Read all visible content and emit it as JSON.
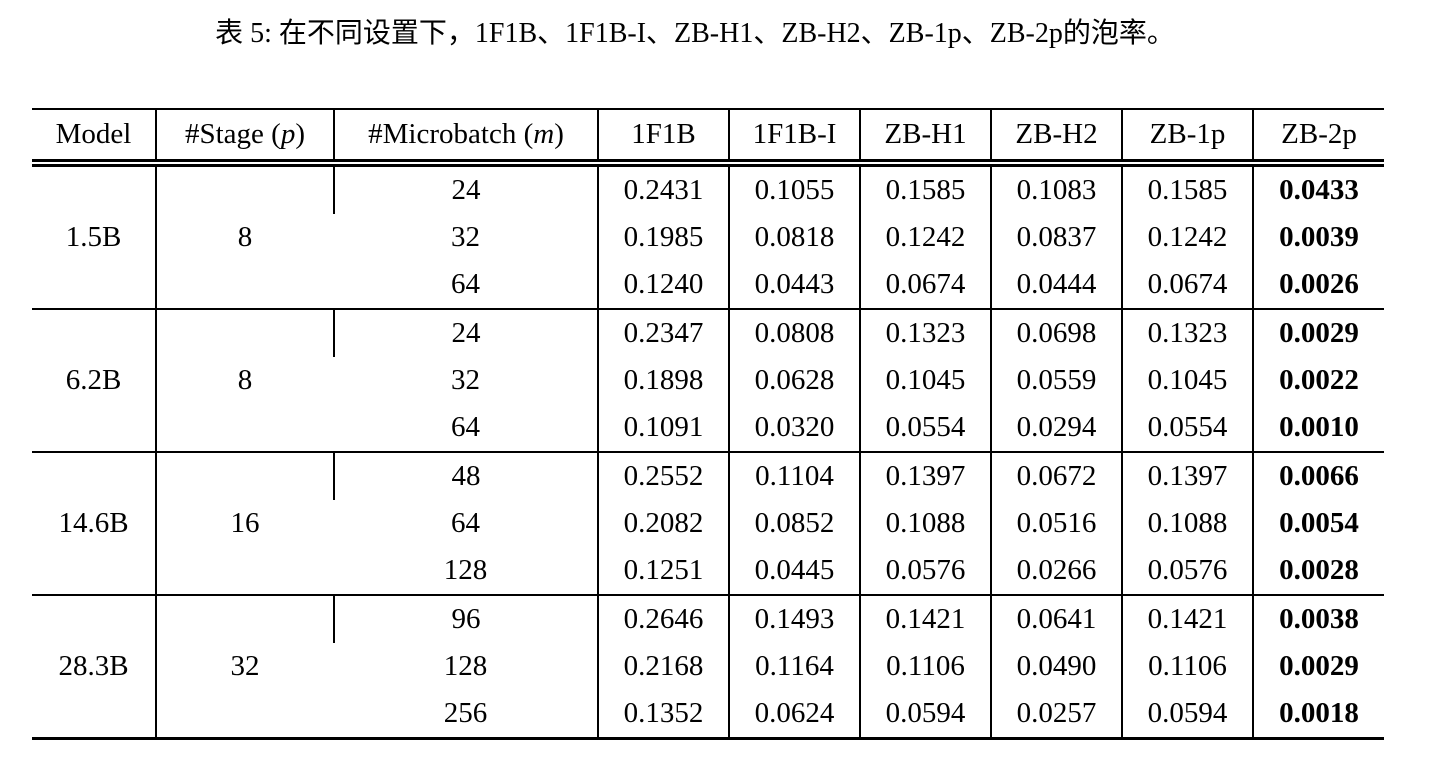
{
  "caption": "表 5: 在不同设置下，1F1B、1F1B-I、ZB-H1、ZB-H2、ZB-1p、ZB-2p的泡率。",
  "table": {
    "headers": {
      "model": "Model",
      "stage_prefix": "#Stage (",
      "stage_var": "p",
      "stage_suffix": ")",
      "microbatch_prefix": "#Microbatch (",
      "microbatch_var": "m",
      "microbatch_suffix": ")",
      "methods": [
        "1F1B",
        "1F1B-I",
        "ZB-H1",
        "ZB-H2",
        "ZB-1p",
        "ZB-2p"
      ]
    },
    "groups": [
      {
        "model": "1.5B",
        "stage": "8",
        "rows": [
          {
            "m": "24",
            "values": [
              "0.2431",
              "0.1055",
              "0.1585",
              "0.1083",
              "0.1585",
              "0.0433"
            ]
          },
          {
            "m": "32",
            "values": [
              "0.1985",
              "0.0818",
              "0.1242",
              "0.0837",
              "0.1242",
              "0.0039"
            ]
          },
          {
            "m": "64",
            "values": [
              "0.1240",
              "0.0443",
              "0.0674",
              "0.0444",
              "0.0674",
              "0.0026"
            ]
          }
        ]
      },
      {
        "model": "6.2B",
        "stage": "8",
        "rows": [
          {
            "m": "24",
            "values": [
              "0.2347",
              "0.0808",
              "0.1323",
              "0.0698",
              "0.1323",
              "0.0029"
            ]
          },
          {
            "m": "32",
            "values": [
              "0.1898",
              "0.0628",
              "0.1045",
              "0.0559",
              "0.1045",
              "0.0022"
            ]
          },
          {
            "m": "64",
            "values": [
              "0.1091",
              "0.0320",
              "0.0554",
              "0.0294",
              "0.0554",
              "0.0010"
            ]
          }
        ]
      },
      {
        "model": "14.6B",
        "stage": "16",
        "rows": [
          {
            "m": "48",
            "values": [
              "0.2552",
              "0.1104",
              "0.1397",
              "0.0672",
              "0.1397",
              "0.0066"
            ]
          },
          {
            "m": "64",
            "values": [
              "0.2082",
              "0.0852",
              "0.1088",
              "0.0516",
              "0.1088",
              "0.0054"
            ]
          },
          {
            "m": "128",
            "values": [
              "0.1251",
              "0.0445",
              "0.0576",
              "0.0266",
              "0.0576",
              "0.0028"
            ]
          }
        ]
      },
      {
        "model": "28.3B",
        "stage": "32",
        "rows": [
          {
            "m": "96",
            "values": [
              "0.2646",
              "0.1493",
              "0.1421",
              "0.0641",
              "0.1421",
              "0.0038"
            ]
          },
          {
            "m": "128",
            "values": [
              "0.2168",
              "0.1164",
              "0.1106",
              "0.0490",
              "0.1106",
              "0.0029"
            ]
          },
          {
            "m": "256",
            "values": [
              "0.1352",
              "0.0624",
              "0.0594",
              "0.0257",
              "0.0594",
              "0.0018"
            ]
          }
        ]
      }
    ]
  }
}
